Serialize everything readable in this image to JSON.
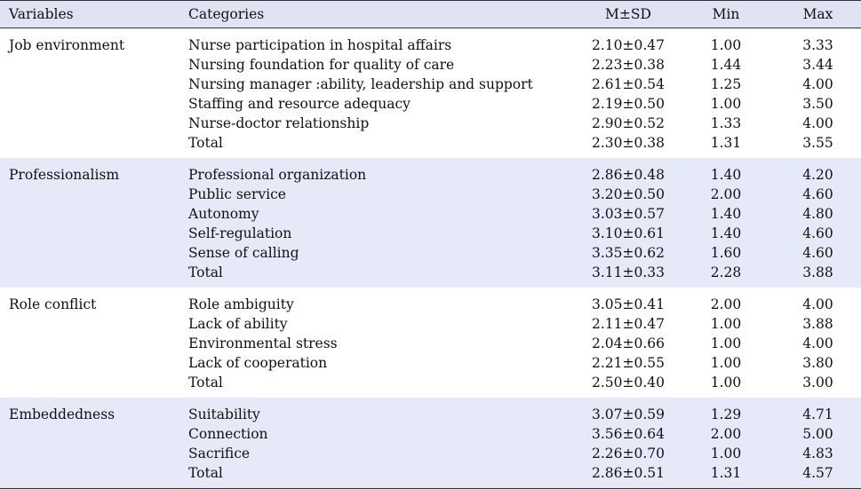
{
  "header": {
    "variables": "Variables",
    "categories": "Categories",
    "msd": "M±SD",
    "min": "Min",
    "max": "Max"
  },
  "groups": [
    {
      "variable": "Job environment",
      "rows": [
        {
          "category": "Nurse participation in hospital affairs",
          "msd": "2.10±0.47",
          "min": "1.00",
          "max": "3.33"
        },
        {
          "category": "Nursing foundation for quality of care",
          "msd": "2.23±0.38",
          "min": "1.44",
          "max": "3.44"
        },
        {
          "category": "Nursing manager :ability, leadership and support",
          "msd": "2.61±0.54",
          "min": "1.25",
          "max": "4.00"
        },
        {
          "category": "Staffing and resource adequacy",
          "msd": "2.19±0.50",
          "min": "1.00",
          "max": "3.50"
        },
        {
          "category": "Nurse-doctor relationship",
          "msd": "2.90±0.52",
          "min": "1.33",
          "max": "4.00"
        },
        {
          "category": "Total",
          "msd": "2.30±0.38",
          "min": "1.31",
          "max": "3.55"
        }
      ]
    },
    {
      "variable": "Professionalism",
      "rows": [
        {
          "category": "Professional organization",
          "msd": "2.86±0.48",
          "min": "1.40",
          "max": "4.20"
        },
        {
          "category": "Public service",
          "msd": "3.20±0.50",
          "min": "2.00",
          "max": "4.60"
        },
        {
          "category": "Autonomy",
          "msd": "3.03±0.57",
          "min": "1.40",
          "max": "4.80"
        },
        {
          "category": "Self-regulation",
          "msd": "3.10±0.61",
          "min": "1.40",
          "max": "4.60"
        },
        {
          "category": "Sense of calling",
          "msd": "3.35±0.62",
          "min": "1.60",
          "max": "4.60"
        },
        {
          "category": "Total",
          "msd": "3.11±0.33",
          "min": "2.28",
          "max": "3.88"
        }
      ]
    },
    {
      "variable": "Role conflict",
      "rows": [
        {
          "category": "Role ambiguity",
          "msd": "3.05±0.41",
          "min": "2.00",
          "max": "4.00"
        },
        {
          "category": "Lack of ability",
          "msd": "2.11±0.47",
          "min": "1.00",
          "max": "3.88"
        },
        {
          "category": "Environmental stress",
          "msd": "2.04±0.66",
          "min": "1.00",
          "max": "4.00"
        },
        {
          "category": "Lack of cooperation",
          "msd": "2.21±0.55",
          "min": "1.00",
          "max": "3.80"
        },
        {
          "category": "Total",
          "msd": "2.50±0.40",
          "min": "1.00",
          "max": "3.00"
        }
      ]
    },
    {
      "variable": "Embeddedness",
      "rows": [
        {
          "category": "Suitability",
          "msd": "3.07±0.59",
          "min": "1.29",
          "max": "4.71"
        },
        {
          "category": "Connection",
          "msd": "3.56±0.64",
          "min": "2.00",
          "max": "5.00"
        },
        {
          "category": "Sacrifice",
          "msd": "2.26±0.70",
          "min": "1.00",
          "max": "4.83"
        },
        {
          "category": "Total",
          "msd": "2.86±0.51",
          "min": "1.31",
          "max": "4.57"
        }
      ]
    }
  ]
}
